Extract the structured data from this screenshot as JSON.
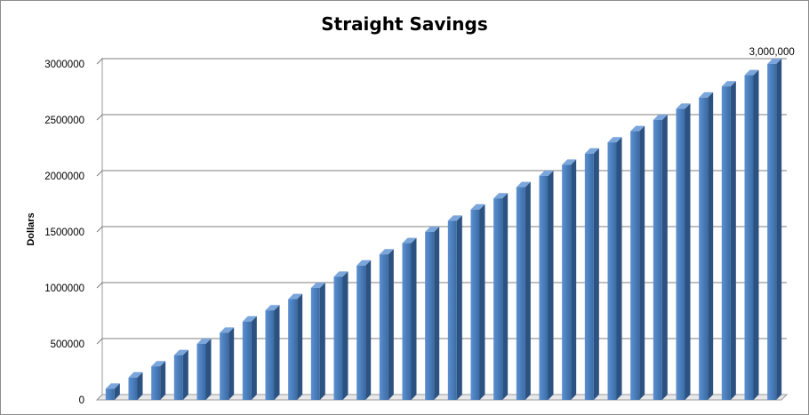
{
  "chart_data": {
    "type": "bar",
    "title": "Straight Savings",
    "ylabel": "Dollars",
    "xlabel": "",
    "ylim": [
      0,
      3000000
    ],
    "yticks": [
      0,
      500000,
      1000000,
      1500000,
      2000000,
      2500000,
      3000000
    ],
    "ytick_labels": [
      "0",
      "500000",
      "1000000",
      "1500000",
      "2000000",
      "2500000",
      "3000000"
    ],
    "grid": true,
    "legend": "none",
    "bar_color": "#4a7ebb",
    "values": [
      100000,
      200000,
      300000,
      400000,
      500000,
      600000,
      700000,
      800000,
      900000,
      1000000,
      1100000,
      1200000,
      1300000,
      1400000,
      1500000,
      1600000,
      1700000,
      1800000,
      1900000,
      2000000,
      2100000,
      2200000,
      2300000,
      2400000,
      2500000,
      2600000,
      2700000,
      2800000,
      2900000,
      3000000
    ],
    "annotations": [
      {
        "index": 29,
        "text": "3,000,000"
      }
    ]
  }
}
